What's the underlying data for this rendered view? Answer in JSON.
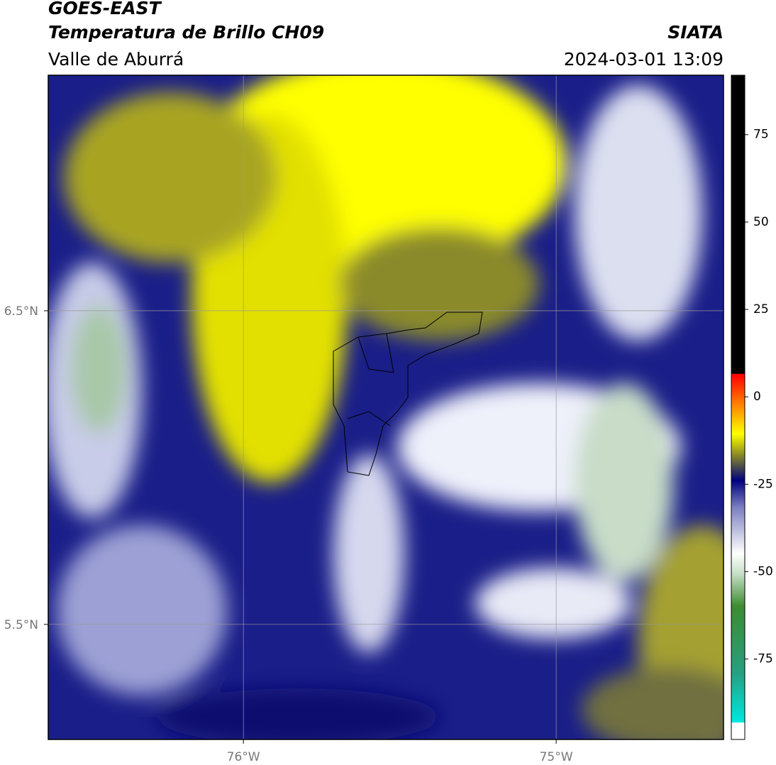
{
  "header": {
    "line1": "GOES-EAST",
    "line2": "Temperatura de Brillo CH09",
    "line3": "Valle de Aburrá",
    "org": "SIATA",
    "datetime": "2024-03-01 13:09"
  },
  "map": {
    "xlim": [
      -76.624,
      -74.465
    ],
    "ylim": [
      5.133,
      7.251
    ],
    "xticks": [
      {
        "value": -76,
        "label": "76°W"
      },
      {
        "value": -75,
        "label": "75°W"
      }
    ],
    "yticks": [
      {
        "value": 6.5,
        "label": "6.5°N"
      },
      {
        "value": 5.5,
        "label": "5.5°N"
      }
    ],
    "grid": true
  },
  "colorbar": {
    "lim": [
      -98,
      92
    ],
    "ticks": [
      75,
      50,
      25,
      0,
      -25,
      -50,
      -75
    ]
  }
}
